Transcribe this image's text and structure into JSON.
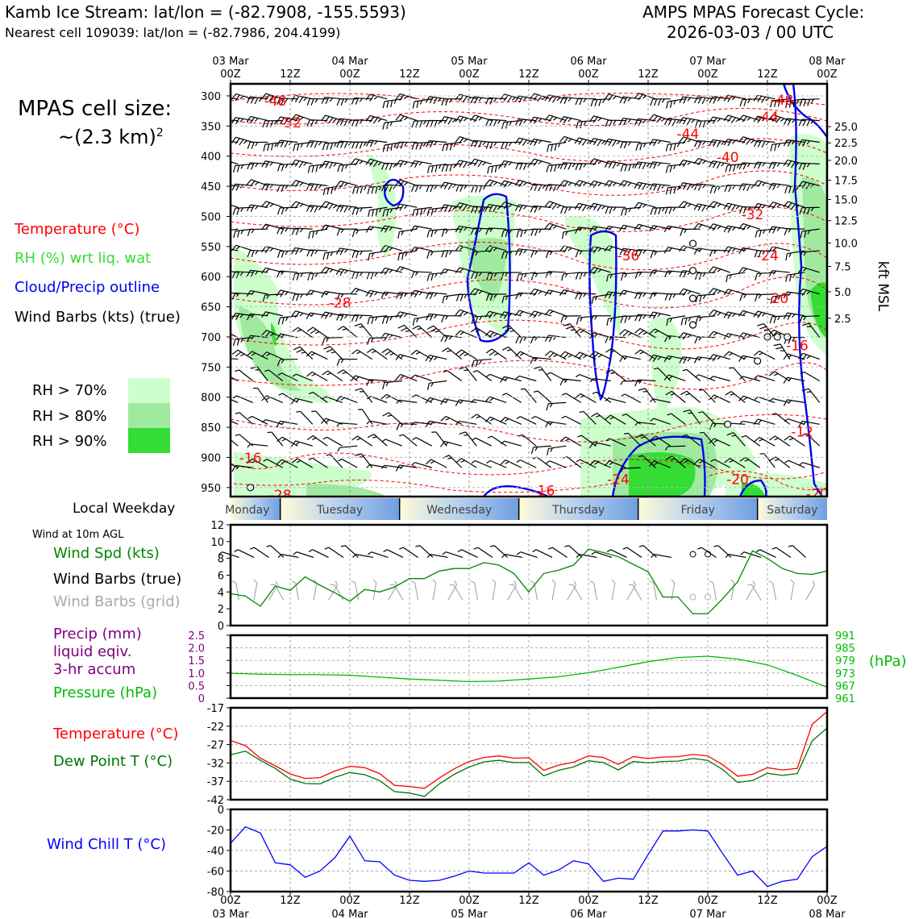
{
  "header": {
    "title_left": "Kamb Ice Stream: lat/lon = (-82.7908, -155.5593)",
    "subtitle_left": "Nearest cell 109039: lat/lon = (-82.7986, 204.4199)",
    "title_right_1": "AMPS MPAS Forecast Cycle:",
    "title_right_2": "2026-03-03 / 00 UTC"
  },
  "left_legend": {
    "cell_size_line1": "MPAS cell size:",
    "cell_size_line2": "~(2.3 km)",
    "cell_size_sup": "2",
    "temperature": "Temperature (°C)",
    "rh": "RH (%) wrt liq. wat",
    "cloud": "Cloud/Precip outline",
    "wind": "Wind Barbs (kts) (true)",
    "rh70": "RH > 70%",
    "rh80": "RH > 80%",
    "rh90": "RH > 90%",
    "weekday_label": "Local Weekday",
    "wind_10m": "Wind at 10m AGL",
    "wind_spd": "Wind Spd (kts)",
    "wind_barbs_true": "Wind Barbs (true)",
    "wind_barbs_grid": "Wind Barbs (grid)",
    "precip_1": "Precip (mm)",
    "precip_2": "liquid eqiv.",
    "precip_3": "3-hr accum",
    "pressure": "Pressure (hPa)",
    "temp2": "Temperature (°C)",
    "dew": "Dew Point T (°C)",
    "windchill": "Wind Chill T (°C)"
  },
  "colors": {
    "temperature": "#ff0000",
    "rh_label": "#33dd33",
    "rh70": "#ccffcc",
    "rh80": "#a0eaa0",
    "rh90": "#33dd33",
    "cloud": "#0000ee",
    "windspd": "#008800",
    "grid_barbs": "#aaaaaa",
    "precip": "#800080",
    "pressure": "#00bb00",
    "dew": "#007700",
    "windchill": "#0000ff"
  },
  "chart_data": [
    {
      "type": "heatmap",
      "name": "time-height cross section",
      "x_ticks_top": [
        {
          "top": "03 Mar",
          "bottom": "00Z"
        },
        {
          "top": "",
          "bottom": "12Z"
        },
        {
          "top": "04 Mar",
          "bottom": "00Z"
        },
        {
          "top": "",
          "bottom": "12Z"
        },
        {
          "top": "05 Mar",
          "bottom": "00Z"
        },
        {
          "top": "",
          "bottom": "12Z"
        },
        {
          "top": "06 Mar",
          "bottom": "00Z"
        },
        {
          "top": "",
          "bottom": "12Z"
        },
        {
          "top": "07 Mar",
          "bottom": "00Z"
        },
        {
          "top": "",
          "bottom": "12Z"
        },
        {
          "top": "08 Mar",
          "bottom": "00Z"
        }
      ],
      "x_range_hours": [
        0,
        120
      ],
      "y_pressure_ticks": [
        300,
        350,
        400,
        450,
        500,
        550,
        600,
        650,
        700,
        750,
        800,
        850,
        900,
        950
      ],
      "y_pressure_range": [
        280,
        965
      ],
      "right_axis_label": "kft MSL",
      "right_axis_ticks": [
        {
          "label": "25.0",
          "p": 351
        },
        {
          "label": "22.5",
          "p": 378
        },
        {
          "label": "20.0",
          "p": 407
        },
        {
          "label": "17.5",
          "p": 440
        },
        {
          "label": "15.0",
          "p": 472
        },
        {
          "label": "12.5",
          "p": 507
        },
        {
          "label": "10.0",
          "p": 544
        },
        {
          "label": "7.5",
          "p": 583
        },
        {
          "label": "5.0",
          "p": 625
        },
        {
          "label": "2.5",
          "p": 669
        }
      ],
      "temperature_contour_labels": [
        {
          "text": "-48",
          "h": 9,
          "p": 308
        },
        {
          "text": "-52",
          "h": 12,
          "p": 344
        },
        {
          "text": "-44",
          "h": 92,
          "p": 363
        },
        {
          "text": "-40",
          "h": 100,
          "p": 402
        },
        {
          "text": "-32",
          "h": 105,
          "p": 497
        },
        {
          "text": "-36",
          "h": 80,
          "p": 565
        },
        {
          "text": "-24",
          "h": 108,
          "p": 565
        },
        {
          "text": "-28",
          "h": 22,
          "p": 643
        },
        {
          "text": "-20",
          "h": 110,
          "p": 636
        },
        {
          "text": "-16",
          "h": 114,
          "p": 714
        },
        {
          "text": "-12",
          "h": 115,
          "p": 857
        },
        {
          "text": "-16",
          "h": 4,
          "p": 901
        },
        {
          "text": "-24",
          "h": 78,
          "p": 936
        },
        {
          "text": "-20",
          "h": 102,
          "p": 936
        },
        {
          "text": "-28",
          "h": 10,
          "p": 962
        },
        {
          "text": "-16",
          "h": 63,
          "p": 955
        },
        {
          "text": "-20",
          "h": 118,
          "p": 960
        },
        {
          "text": "-44",
          "h": 108,
          "p": 335
        },
        {
          "text": "-48",
          "h": 111,
          "p": 307
        }
      ],
      "weekdays": [
        "Monday",
        "Tuesday",
        "Wednesday",
        "Thursday",
        "Friday",
        "Saturday"
      ]
    },
    {
      "type": "line",
      "name": "10m wind speed",
      "x_hours": [
        0,
        3,
        6,
        9,
        12,
        15,
        18,
        21,
        24,
        27,
        30,
        33,
        36,
        39,
        42,
        45,
        48,
        51,
        54,
        57,
        60,
        63,
        66,
        69,
        72,
        75,
        78,
        81,
        84,
        87,
        90,
        93,
        96,
        99,
        102,
        105,
        108,
        111,
        114,
        117,
        120
      ],
      "series": [
        {
          "name": "Wind Spd (kts)",
          "values": [
            3.8,
            3.5,
            2.3,
            4.7,
            4.2,
            5.8,
            4.8,
            3.9,
            2.9,
            4.3,
            4.0,
            4.6,
            5.6,
            5.6,
            6.5,
            6.8,
            6.8,
            7.5,
            7.2,
            6.2,
            4.0,
            6.2,
            6.6,
            7.2,
            9.1,
            8.7,
            8.2,
            7.3,
            6.4,
            3.4,
            3.4,
            1.4,
            1.4,
            3.2,
            5.2,
            8.9,
            8.0,
            6.8,
            6.2,
            6.1,
            6.5
          ]
        }
      ],
      "ylim": [
        0,
        12
      ],
      "yticks": [
        0,
        2,
        4,
        6,
        8,
        10,
        12
      ]
    },
    {
      "type": "line",
      "name": "pressure and precip",
      "x_hours": [
        0,
        6,
        12,
        18,
        24,
        30,
        36,
        42,
        48,
        54,
        60,
        66,
        72,
        78,
        84,
        90,
        96,
        102,
        108,
        114,
        120
      ],
      "series": [
        {
          "name": "Pressure (hPa)",
          "values": [
            972.9,
            972.4,
            972.2,
            972.2,
            971.9,
            971.0,
            970.1,
            969.5,
            968.9,
            969.1,
            970.1,
            971.2,
            973.1,
            975.7,
            978.4,
            980.4,
            981.0,
            979.6,
            976.9,
            971.8,
            966.2
          ]
        }
      ],
      "precip_yticks": [
        "2.5",
        "2.0",
        "1.5",
        "1.0",
        "0.5",
        "0"
      ],
      "pressure_yticks": [
        "991",
        "985",
        "979",
        "973",
        "967",
        "961"
      ],
      "pressure_ylim": [
        961,
        991
      ],
      "pressure_unit": "(hPa)"
    },
    {
      "type": "line",
      "name": "temperature and dew point",
      "x_hours": [
        0,
        3,
        6,
        9,
        12,
        15,
        18,
        21,
        24,
        27,
        30,
        33,
        36,
        39,
        42,
        45,
        48,
        51,
        54,
        57,
        60,
        63,
        66,
        69,
        72,
        75,
        78,
        81,
        84,
        87,
        90,
        93,
        96,
        99,
        102,
        105,
        108,
        111,
        114,
        117,
        120
      ],
      "series": [
        {
          "name": "Temperature (°C)",
          "values": [
            -25.9,
            -27.3,
            -30.7,
            -32.8,
            -35.0,
            -36.2,
            -36.0,
            -34.2,
            -32.9,
            -33.3,
            -34.9,
            -38.1,
            -38.4,
            -38.9,
            -36.1,
            -33.6,
            -31.6,
            -30.5,
            -30.1,
            -30.7,
            -30.6,
            -34.0,
            -32.6,
            -31.8,
            -30.1,
            -30.5,
            -32.4,
            -30.3,
            -30.8,
            -30.4,
            -30.3,
            -29.7,
            -30.1,
            -32.5,
            -35.6,
            -35.1,
            -33.3,
            -33.9,
            -33.5,
            -21.5,
            -18.0
          ]
        },
        {
          "name": "Dew Point T (°C)",
          "values": [
            -29.8,
            -28.8,
            -31.3,
            -33.5,
            -36.4,
            -37.6,
            -37.7,
            -35.9,
            -34.6,
            -35.2,
            -36.8,
            -39.8,
            -40.2,
            -41.1,
            -37.7,
            -35.1,
            -33.1,
            -31.7,
            -31.3,
            -31.9,
            -31.9,
            -35.5,
            -34.0,
            -33.1,
            -31.4,
            -31.9,
            -33.9,
            -31.6,
            -32.0,
            -31.6,
            -31.5,
            -30.8,
            -31.3,
            -33.8,
            -37.3,
            -36.8,
            -34.8,
            -35.4,
            -34.9,
            -26.0,
            -22.5
          ]
        }
      ],
      "ylim": [
        -42,
        -17
      ],
      "yticks": [
        -17,
        -22,
        -27,
        -32,
        -37,
        -42
      ]
    },
    {
      "type": "line",
      "name": "wind chill",
      "x_hours": [
        0,
        3,
        6,
        9,
        12,
        15,
        18,
        21,
        24,
        27,
        30,
        33,
        36,
        39,
        42,
        45,
        48,
        51,
        54,
        57,
        60,
        63,
        66,
        69,
        72,
        75,
        78,
        81,
        84,
        87,
        90,
        93,
        96,
        99,
        102,
        105,
        108,
        111,
        114,
        117,
        120
      ],
      "series": [
        {
          "name": "Wind Chill T (°C)",
          "values": [
            -33,
            -17,
            -23,
            -52,
            -54,
            -66,
            -60,
            -47,
            -26,
            -50,
            -51,
            -64,
            -69,
            -70,
            -69,
            -65,
            -60,
            -62,
            -62,
            -62,
            -52,
            -64,
            -59,
            -50,
            -53,
            -70,
            -67,
            -68,
            -44,
            -21,
            -21,
            -20,
            -21,
            -43,
            -64,
            -60,
            -75,
            -70,
            -68,
            -46,
            -36
          ]
        }
      ],
      "ylim": [
        -80,
        0
      ],
      "yticks": [
        0,
        -20,
        -40,
        -60,
        -80
      ]
    }
  ],
  "bottom_axis": [
    {
      "top": "00Z",
      "bottom": "03 Mar"
    },
    {
      "top": "12Z",
      "bottom": ""
    },
    {
      "top": "00Z",
      "bottom": "04 Mar"
    },
    {
      "top": "12Z",
      "bottom": ""
    },
    {
      "top": "00Z",
      "bottom": "05 Mar"
    },
    {
      "top": "12Z",
      "bottom": ""
    },
    {
      "top": "00Z",
      "bottom": "06 Mar"
    },
    {
      "top": "12Z",
      "bottom": ""
    },
    {
      "top": "00Z",
      "bottom": "07 Mar"
    },
    {
      "top": "12Z",
      "bottom": ""
    },
    {
      "top": "00Z",
      "bottom": "08 Mar"
    }
  ]
}
